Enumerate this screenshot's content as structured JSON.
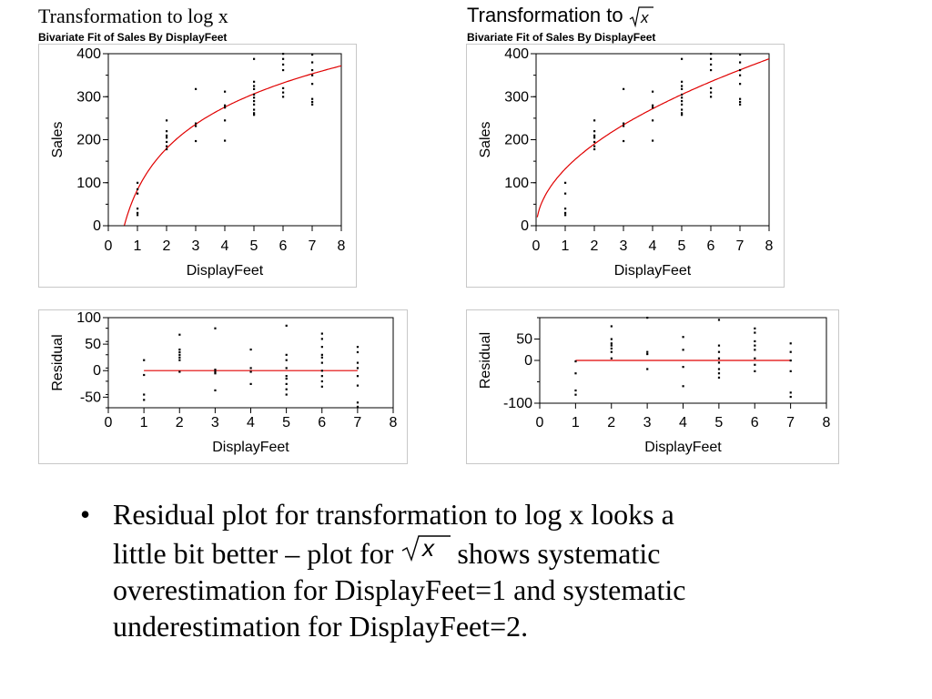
{
  "left": {
    "title": "Transformation to log x",
    "subtitle": "Bivariate Fit of Sales By DisplayFeet"
  },
  "right": {
    "title_prefix": "Transformation to",
    "title_symbol": "√x",
    "subtitle": "Bivariate Fit of Sales By DisplayFeet"
  },
  "bullet": {
    "marker": "•",
    "line1": "Residual plot for transformation to log x looks a",
    "line2_before": "little bit better – plot for",
    "line2_after": "shows systematic",
    "line3": "overestimation for DisplayFeet=1 and systematic",
    "line4": "underestimation for DisplayFeet=2."
  },
  "chart_data": [
    {
      "id": "fit_log",
      "type": "scatter",
      "xlabel": "DisplayFeet",
      "ylabel": "Sales",
      "xlim": [
        0,
        8
      ],
      "ylim": [
        0,
        400
      ],
      "xticks": [
        0,
        1,
        2,
        3,
        4,
        5,
        6,
        7,
        8
      ],
      "yticks": [
        0,
        100,
        200,
        300,
        400
      ],
      "points": [
        [
          1,
          100
        ],
        [
          1,
          85
        ],
        [
          1,
          75
        ],
        [
          1,
          40
        ],
        [
          1,
          30
        ],
        [
          1,
          25
        ],
        [
          2,
          245
        ],
        [
          2,
          220
        ],
        [
          2,
          210
        ],
        [
          2,
          205
        ],
        [
          2,
          195
        ],
        [
          2,
          185
        ],
        [
          2,
          178
        ],
        [
          3,
          318
        ],
        [
          3,
          238
        ],
        [
          3,
          232
        ],
        [
          3,
          197
        ],
        [
          4,
          312
        ],
        [
          4,
          280
        ],
        [
          4,
          275
        ],
        [
          4,
          245
        ],
        [
          4,
          198
        ],
        [
          5,
          388
        ],
        [
          5,
          335
        ],
        [
          5,
          325
        ],
        [
          5,
          318
        ],
        [
          5,
          305
        ],
        [
          5,
          298
        ],
        [
          5,
          290
        ],
        [
          5,
          282
        ],
        [
          5,
          270
        ],
        [
          5,
          262
        ],
        [
          5,
          258
        ],
        [
          6,
          400
        ],
        [
          6,
          388
        ],
        [
          6,
          375
        ],
        [
          6,
          362
        ],
        [
          6,
          320
        ],
        [
          6,
          310
        ],
        [
          6,
          300
        ],
        [
          7,
          398
        ],
        [
          7,
          380
        ],
        [
          7,
          362
        ],
        [
          7,
          350
        ],
        [
          7,
          330
        ],
        [
          7,
          295
        ],
        [
          7,
          288
        ],
        [
          7,
          282
        ]
      ],
      "fit": {
        "model": "log",
        "a": 83.6,
        "b": 138.6,
        "color": "#e00000"
      }
    },
    {
      "id": "fit_sqrt",
      "type": "scatter",
      "xlabel": "DisplayFeet",
      "ylabel": "Sales",
      "xlim": [
        0,
        8
      ],
      "ylim": [
        0,
        400
      ],
      "xticks": [
        0,
        1,
        2,
        3,
        4,
        5,
        6,
        7,
        8
      ],
      "yticks": [
        0,
        100,
        200,
        300,
        400
      ],
      "points": [
        [
          1,
          100
        ],
        [
          1,
          75
        ],
        [
          1,
          40
        ],
        [
          1,
          30
        ],
        [
          1,
          25
        ],
        [
          2,
          245
        ],
        [
          2,
          220
        ],
        [
          2,
          210
        ],
        [
          2,
          205
        ],
        [
          2,
          195
        ],
        [
          2,
          185
        ],
        [
          2,
          178
        ],
        [
          3,
          318
        ],
        [
          3,
          238
        ],
        [
          3,
          232
        ],
        [
          3,
          197
        ],
        [
          4,
          312
        ],
        [
          4,
          280
        ],
        [
          4,
          275
        ],
        [
          4,
          245
        ],
        [
          4,
          198
        ],
        [
          5,
          388
        ],
        [
          5,
          335
        ],
        [
          5,
          325
        ],
        [
          5,
          318
        ],
        [
          5,
          305
        ],
        [
          5,
          298
        ],
        [
          5,
          290
        ],
        [
          5,
          282
        ],
        [
          5,
          270
        ],
        [
          5,
          262
        ],
        [
          5,
          258
        ],
        [
          6,
          400
        ],
        [
          6,
          388
        ],
        [
          6,
          375
        ],
        [
          6,
          362
        ],
        [
          6,
          320
        ],
        [
          6,
          310
        ],
        [
          6,
          300
        ],
        [
          7,
          398
        ],
        [
          7,
          380
        ],
        [
          7,
          362
        ],
        [
          7,
          350
        ],
        [
          7,
          330
        ],
        [
          7,
          295
        ],
        [
          7,
          288
        ],
        [
          7,
          282
        ]
      ],
      "fit": {
        "model": "sqrt",
        "a": -8,
        "b": 140,
        "color": "#e00000"
      }
    },
    {
      "id": "resid_log",
      "type": "scatter",
      "xlabel": "DisplayFeet",
      "ylabel": "Residual",
      "xlim": [
        0,
        8
      ],
      "ylim": [
        -70,
        100
      ],
      "xticks": [
        0,
        1,
        2,
        3,
        4,
        5,
        6,
        7,
        8
      ],
      "yticks": [
        -50,
        0,
        50,
        100
      ],
      "points": [
        [
          1,
          20
        ],
        [
          1,
          -8
        ],
        [
          1,
          -45
        ],
        [
          1,
          -55
        ],
        [
          2,
          68
        ],
        [
          2,
          40
        ],
        [
          2,
          35
        ],
        [
          2,
          30
        ],
        [
          2,
          25
        ],
        [
          2,
          20
        ],
        [
          2,
          -2
        ],
        [
          3,
          80
        ],
        [
          3,
          2
        ],
        [
          3,
          -2
        ],
        [
          3,
          -5
        ],
        [
          3,
          -37
        ],
        [
          4,
          40
        ],
        [
          4,
          5
        ],
        [
          4,
          -2
        ],
        [
          4,
          -25
        ],
        [
          5,
          85
        ],
        [
          5,
          30
        ],
        [
          5,
          20
        ],
        [
          5,
          5
        ],
        [
          5,
          -10
        ],
        [
          5,
          -15
        ],
        [
          5,
          -25
        ],
        [
          5,
          -35
        ],
        [
          5,
          -45
        ],
        [
          6,
          70
        ],
        [
          6,
          60
        ],
        [
          6,
          45
        ],
        [
          6,
          30
        ],
        [
          6,
          25
        ],
        [
          6,
          15
        ],
        [
          6,
          0
        ],
        [
          6,
          -10
        ],
        [
          6,
          -20
        ],
        [
          6,
          -30
        ],
        [
          7,
          45
        ],
        [
          7,
          35
        ],
        [
          7,
          15
        ],
        [
          7,
          5
        ],
        [
          7,
          -10
        ],
        [
          7,
          -28
        ],
        [
          7,
          -60
        ],
        [
          7,
          -68
        ]
      ],
      "fit": {
        "model": "zero",
        "x_from": 1,
        "x_to": 7,
        "color": "#e00000"
      }
    },
    {
      "id": "resid_sqrt",
      "type": "scatter",
      "xlabel": "DisplayFeet",
      "ylabel": "Residual",
      "xlim": [
        0,
        8
      ],
      "ylim": [
        -100,
        100
      ],
      "xticks": [
        0,
        1,
        2,
        3,
        4,
        5,
        6,
        7,
        8
      ],
      "yticks": [
        -100,
        0,
        50
      ],
      "points": [
        [
          1,
          -2
        ],
        [
          1,
          -30
        ],
        [
          1,
          -70
        ],
        [
          1,
          -80
        ],
        [
          2,
          80
        ],
        [
          2,
          50
        ],
        [
          2,
          40
        ],
        [
          2,
          35
        ],
        [
          2,
          28
        ],
        [
          2,
          20
        ],
        [
          2,
          5
        ],
        [
          3,
          100
        ],
        [
          3,
          20
        ],
        [
          3,
          15
        ],
        [
          3,
          -20
        ],
        [
          4,
          55
        ],
        [
          4,
          25
        ],
        [
          4,
          -15
        ],
        [
          4,
          -60
        ],
        [
          5,
          95
        ],
        [
          5,
          35
        ],
        [
          5,
          20
        ],
        [
          5,
          5
        ],
        [
          5,
          -5
        ],
        [
          5,
          -20
        ],
        [
          5,
          -30
        ],
        [
          5,
          -40
        ],
        [
          6,
          75
        ],
        [
          6,
          65
        ],
        [
          6,
          45
        ],
        [
          6,
          35
        ],
        [
          6,
          25
        ],
        [
          6,
          5
        ],
        [
          6,
          -10
        ],
        [
          6,
          -25
        ],
        [
          7,
          40
        ],
        [
          7,
          20
        ],
        [
          7,
          0
        ],
        [
          7,
          -25
        ],
        [
          7,
          -75
        ],
        [
          7,
          -85
        ]
      ],
      "fit": {
        "model": "zero",
        "x_from": 1,
        "x_to": 7,
        "color": "#e00000"
      }
    }
  ]
}
